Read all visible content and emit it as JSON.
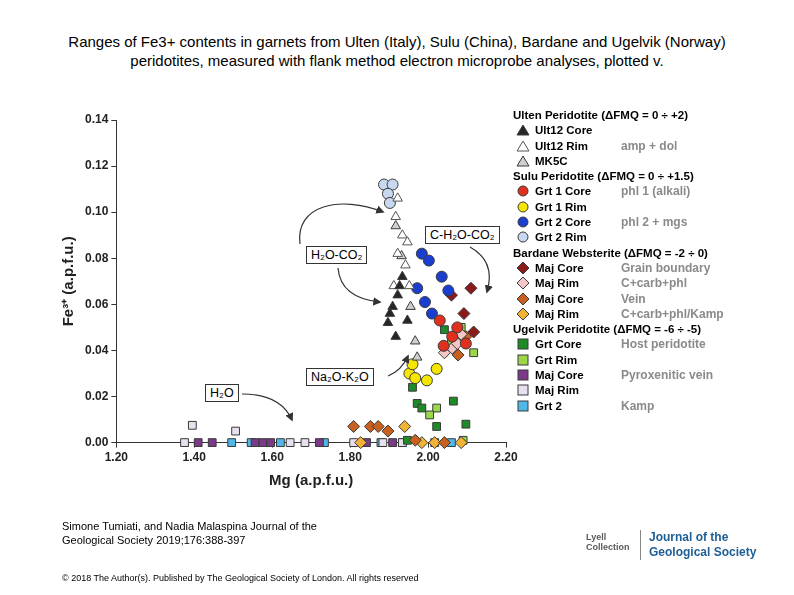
{
  "chart_data": {
    "type": "scatter",
    "title": "Ranges of Fe3+ contents in garnets from Ulten (Italy), Sulu (China), Bardane and Ugelvik (Norway) peridotites, measured with flank method electron microprobe analyses, plotted v.",
    "x_label": "Mg (a.p.f.u.)",
    "y_label": "Fe³⁺ (a.p.f.u.)",
    "xlim": [
      1.2,
      2.2
    ],
    "xticks": [
      {
        "value": 1.2,
        "label": "1.20"
      },
      {
        "value": 1.4,
        "label": "1.40"
      },
      {
        "value": 1.6,
        "label": "1.60"
      },
      {
        "value": 1.8,
        "label": "1.80"
      },
      {
        "value": 2.0,
        "label": "2.00"
      },
      {
        "value": 2.2,
        "label": "2.20"
      }
    ],
    "ylim": [
      0,
      0.14
    ],
    "yticks": [
      {
        "value": 0,
        "label": "0.00"
      },
      0.02,
      0.04,
      0.06,
      0.08,
      {
        "value": 0.1,
        "label": "0.10"
      },
      0.12,
      0.14
    ],
    "grid": false,
    "legend": "right",
    "annotations": [
      "H₂O-CO₂",
      "C-H₂O-CO₂",
      "Na₂O-K₂O",
      "H₂O"
    ],
    "series": [
      {
        "group": "Ulten Peridotite (ΔFMQ = 0 ÷ +2)",
        "name": "Ult12 Core",
        "color": "#262626",
        "marker": "triangle",
        "x": [
          1.897,
          1.909,
          1.922,
          1.934,
          1.917,
          1.947,
          1.927,
          1.902
        ],
        "values": [
          0.052,
          0.059,
          0.064,
          0.072,
          0.046,
          0.053,
          0.068,
          0.056
        ]
      },
      {
        "group": "Ulten Peridotite (ΔFMQ = 0 ÷ +2)",
        "name": "Ult12 Rim",
        "note": "amp + dol",
        "color": "#ffffff",
        "marker": "triangle",
        "x": [
          1.922,
          1.917,
          1.934,
          1.947,
          1.922,
          1.942,
          1.952,
          1.912
        ],
        "values": [
          0.106,
          0.098,
          0.09,
          0.087,
          0.082,
          0.077,
          0.068,
          0.068
        ]
      },
      {
        "group": "Ulten Peridotite (ΔFMQ = 0 ÷ +2)",
        "name": "MK5C",
        "color": "#cfcfcf",
        "marker": "triangle",
        "x": [
          1.932,
          1.955,
          1.967,
          1.917,
          1.972
        ],
        "values": [
          0.081,
          0.059,
          0.044,
          0.094,
          0.037
        ]
      },
      {
        "group": "Sulu Peridotite (ΔFMQ = 0 ÷ +1.5)",
        "name": "Grt 1 Core",
        "note": "phl 1 (alkali)",
        "color": "#e0301e",
        "marker": "circle",
        "x": [
          2.03,
          2.062,
          2.075,
          2.04,
          2.097
        ],
        "values": [
          0.053,
          0.046,
          0.05,
          0.042,
          0.043
        ]
      },
      {
        "group": "Sulu Peridotite (ΔFMQ = 0 ÷ +1.5)",
        "name": "Grt 1 Rim",
        "color": "#f5e600",
        "marker": "circle",
        "x": [
          1.952,
          1.967,
          1.997,
          1.96,
          2.022
        ],
        "values": [
          0.03,
          0.028,
          0.027,
          0.034,
          0.032
        ]
      },
      {
        "group": "Sulu Peridotite (ΔFMQ = 0 ÷ +1.5)",
        "name": "Grt 2 Core",
        "note": "phl 2 + mgs",
        "color": "#1a3fd0",
        "marker": "circle",
        "x": [
          1.972,
          1.992,
          2.01,
          1.984,
          2.035,
          2.002,
          2.052
        ],
        "values": [
          0.067,
          0.061,
          0.056,
          0.082,
          0.072,
          0.079,
          0.066
        ]
      },
      {
        "group": "Sulu Peridotite (ΔFMQ = 0 ÷ +1.5)",
        "name": "Grt 2 Rim",
        "color": "#c8d8f0",
        "marker": "circle",
        "x": [
          1.887,
          1.909,
          1.897,
          1.902
        ],
        "values": [
          0.112,
          0.112,
          0.108,
          0.104
        ]
      },
      {
        "group": "Bardane Websterite (ΔFMQ = -2 ÷ 0)",
        "name": "Maj Core",
        "note": "Grain boundary",
        "color": "#8b1a1a",
        "marker": "diamond",
        "x": [
          2.11,
          2.117,
          2.092,
          2.06
        ],
        "values": [
          0.067,
          0.048,
          0.056,
          0.064
        ]
      },
      {
        "group": "Bardane Websterite (ΔFMQ = -2 ÷ 0)",
        "name": "Maj Rim",
        "note": "C+carb+phl",
        "color": "#f4c6c6",
        "marker": "diamond",
        "x": [
          2.062,
          2.075,
          2.042,
          2.085
        ],
        "values": [
          0.041,
          0.043,
          0.039,
          0.047
        ]
      },
      {
        "group": "Bardane Websterite (ΔFMQ = -2 ÷ 0)",
        "name": "Maj Core",
        "note": "Vein",
        "color": "#c86020",
        "marker": "diamond",
        "x": [
          2.097,
          2.077,
          1.852,
          1.872,
          1.897,
          1.809,
          1.967,
          2.042
        ],
        "values": [
          0.046,
          0.038,
          0.007,
          0.007,
          0.005,
          0.007,
          0.001,
          0.0
        ]
      },
      {
        "group": "Bardane Websterite (ΔFMQ = -2 ÷ 0)",
        "name": "Maj Rim",
        "note": "C+carb+phl/Kamp",
        "color": "#f2b233",
        "marker": "diamond",
        "x": [
          2.017,
          2.085,
          1.984,
          1.827,
          1.94
        ],
        "values": [
          0.0,
          0.0,
          0.0,
          0.0,
          0.007
        ]
      },
      {
        "group": "Ugelvik Peridotite (ΔFMQ = -6 ÷ -5)",
        "name": "Grt Core",
        "note": "Host peridotite",
        "color": "#1e8a28",
        "marker": "square",
        "x": [
          2.042,
          1.96,
          1.972,
          1.984,
          2.022,
          2.065,
          2.097,
          1.947
        ],
        "values": [
          0.049,
          0.024,
          0.017,
          0.015,
          0.007,
          0.018,
          0.008,
          0.001
        ]
      },
      {
        "group": "Ugelvik Peridotite (ΔFMQ = -6 ÷ -5)",
        "name": "Grt Rim",
        "color": "#9ad84a",
        "marker": "square",
        "x": [
          2.085,
          2.117,
          2.022,
          2.06,
          2.004,
          2.09
        ],
        "values": [
          0.05,
          0.039,
          0.015,
          0.044,
          0.012,
          0.001
        ]
      },
      {
        "group": "Ugelvik Peridotite (ΔFMQ = -6 ÷ -5)",
        "name": "Maj Core",
        "note": "Pyroxenitic vein",
        "color": "#7a3a88",
        "marker": "square",
        "x": [
          1.41,
          1.556,
          1.576,
          1.596,
          1.721,
          1.842,
          1.909,
          1.446
        ],
        "values": [
          0.0,
          0.0,
          0.0,
          0.0,
          0.0,
          0.0,
          0.0,
          0.0
        ]
      },
      {
        "group": "Ugelvik Peridotite (ΔFMQ = -6 ÷ -5)",
        "name": "Maj Rim",
        "color": "#e8e0ee",
        "marker": "square",
        "x": [
          1.375,
          1.506,
          1.395,
          1.684,
          1.646,
          1.809,
          1.884,
          1.934
        ],
        "values": [
          0.0,
          0.005,
          0.0075,
          0.0,
          0.0,
          0.0,
          0.0,
          0.0
        ]
      },
      {
        "group": "Ugelvik Peridotite (ΔFMQ = -6 ÷ -5)",
        "name": "Grt 2",
        "note": "Kamp",
        "color": "#4fb8e8",
        "marker": "square",
        "x": [
          1.496,
          1.621,
          1.734,
          1.879,
          1.934,
          2.017,
          2.06,
          1.546
        ],
        "values": [
          0.0,
          0.0,
          0.0,
          0.0,
          0.0,
          0.0,
          0.0,
          0.0
        ]
      }
    ]
  },
  "footer": {
    "citation": [
      "Simone Tumiati, and Nadia Malaspina Journal of the",
      "Geological Society 2019;176:388-397"
    ],
    "copyright": "© 2018 The Author(s). Published by The Geological Society of London. All rights reserved",
    "logo": [
      "Lyell",
      "Collection"
    ],
    "journal": [
      "Journal of the",
      "Geological Society"
    ]
  }
}
